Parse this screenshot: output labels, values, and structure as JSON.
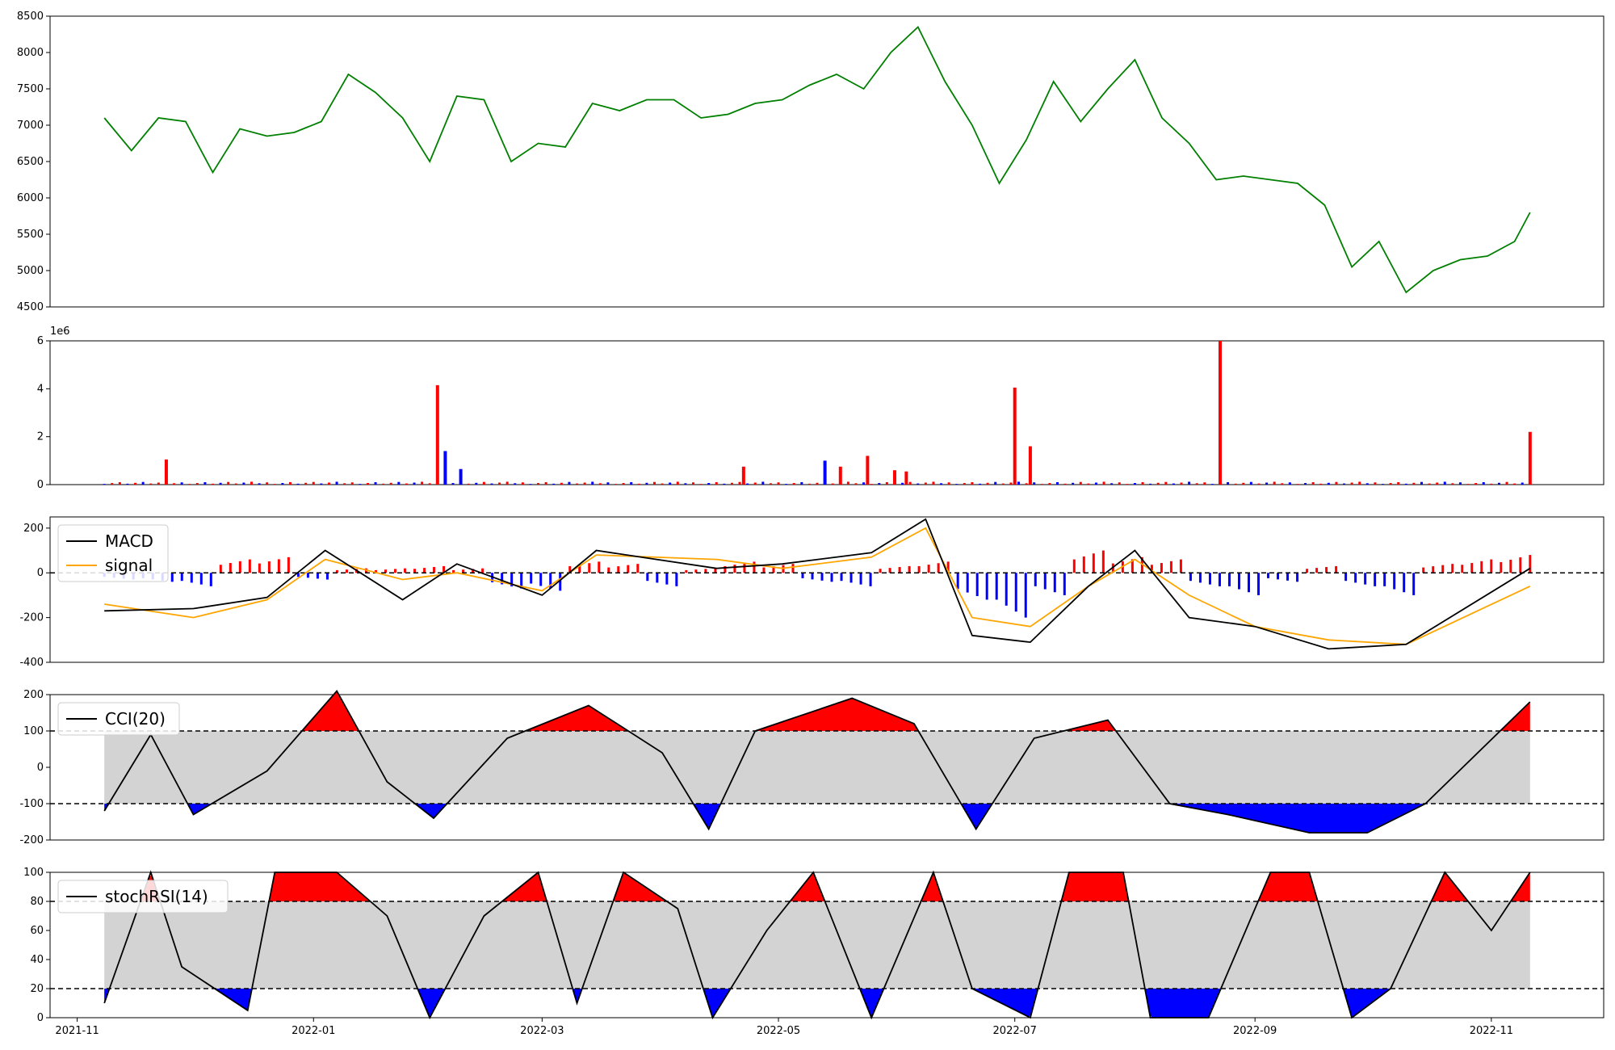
{
  "figure": {
    "background": "#ffffff"
  },
  "colors": {
    "price": "#008000",
    "up": "#ff0000",
    "down": "#0000ff",
    "macd": "#000000",
    "signal": "#ffa500",
    "band": "#d3d3d3",
    "line": "#000000"
  },
  "x_axis": {
    "ticks": [
      "2021-11",
      "2022-01",
      "2022-03",
      "2022-05",
      "2022-07",
      "2022-09",
      "2022-11"
    ]
  },
  "chart_data": [
    {
      "id": "price",
      "type": "line",
      "title": "",
      "xlabel": "",
      "ylabel": "",
      "ylim": [
        4500,
        8500
      ],
      "yticks": [
        "8500",
        "8000",
        "7500",
        "7000",
        "6500",
        "6000",
        "5500",
        "5000",
        "4500"
      ],
      "x": [
        "2021-11-08",
        "2021-11-15",
        "2021-11-22",
        "2021-11-29",
        "2021-12-06",
        "2021-12-13",
        "2021-12-20",
        "2021-12-27",
        "2022-01-03",
        "2022-01-10",
        "2022-01-17",
        "2022-01-24",
        "2022-01-31",
        "2022-02-07",
        "2022-02-14",
        "2022-02-21",
        "2022-02-28",
        "2022-03-07",
        "2022-03-14",
        "2022-03-21",
        "2022-03-28",
        "2022-04-04",
        "2022-04-11",
        "2022-04-18",
        "2022-04-25",
        "2022-05-02",
        "2022-05-09",
        "2022-05-16",
        "2022-05-23",
        "2022-05-30",
        "2022-06-06",
        "2022-06-13",
        "2022-06-20",
        "2022-06-27",
        "2022-07-04",
        "2022-07-11",
        "2022-07-18",
        "2022-07-25",
        "2022-08-01",
        "2022-08-08",
        "2022-08-15",
        "2022-08-22",
        "2022-08-29",
        "2022-09-05",
        "2022-09-12",
        "2022-09-19",
        "2022-09-26",
        "2022-10-03",
        "2022-10-10",
        "2022-10-17",
        "2022-10-24",
        "2022-10-31",
        "2022-11-07",
        "2022-11-11"
      ],
      "series": [
        {
          "values": [
            7100,
            6650,
            7100,
            7050,
            6350,
            6950,
            6850,
            6900,
            7050,
            7700,
            7450,
            7100,
            6500,
            7400,
            7350,
            6500,
            6750,
            6700,
            7300,
            7200,
            7350,
            7350,
            7100,
            7150,
            7300,
            7350,
            7550,
            7700,
            7500,
            8000,
            8350,
            7600,
            7000,
            6200,
            6800,
            7600,
            7050,
            7500,
            7900,
            7100,
            6750,
            6250,
            6300,
            6250,
            6200,
            5900,
            5050,
            5400,
            4700,
            5000,
            5150,
            5200,
            5400,
            5800
          ]
        }
      ]
    },
    {
      "id": "volume",
      "type": "bar",
      "title": "",
      "xlabel": "",
      "ylabel": "",
      "ylim": [
        0,
        6000000
      ],
      "scale_label": "1e6",
      "yticks": [
        "6",
        "4",
        "2",
        "0"
      ],
      "x": [
        "2021-11-24",
        "2022-02-02",
        "2022-02-04",
        "2022-02-08",
        "2022-04-22",
        "2022-05-13",
        "2022-05-17",
        "2022-05-24",
        "2022-05-31",
        "2022-06-03",
        "2022-07-01",
        "2022-07-05",
        "2022-08-23",
        "2022-11-11"
      ],
      "series": [
        {
          "values": [
            1050000,
            4150000,
            1400000,
            650000,
            750000,
            1000000,
            750000,
            1200000,
            600000,
            550000,
            4050000,
            1600000,
            6000000,
            2200000
          ]
        }
      ]
    },
    {
      "id": "macd",
      "type": "line",
      "title": "",
      "xlabel": "",
      "ylabel": "",
      "ylim": [
        -400,
        250
      ],
      "yticks": [
        "200",
        "0",
        "-200",
        "-400"
      ],
      "x": [
        "2021-11-08",
        "2021-12-01",
        "2021-12-20",
        "2022-01-04",
        "2022-01-24",
        "2022-02-07",
        "2022-03-01",
        "2022-03-15",
        "2022-04-15",
        "2022-05-02",
        "2022-05-25",
        "2022-06-08",
        "2022-06-20",
        "2022-07-05",
        "2022-07-20",
        "2022-08-01",
        "2022-08-15",
        "2022-09-01",
        "2022-09-20",
        "2022-10-10",
        "2022-11-11"
      ],
      "series": [
        {
          "name": "MACD",
          "values": [
            -170,
            -160,
            -110,
            100,
            -120,
            40,
            -100,
            100,
            20,
            40,
            90,
            240,
            -280,
            -310,
            -60,
            100,
            -200,
            -240,
            -340,
            -320,
            20
          ]
        },
        {
          "name": "signal",
          "values": [
            -140,
            -200,
            -120,
            60,
            -30,
            0,
            -80,
            80,
            60,
            20,
            70,
            200,
            -200,
            -240,
            -60,
            60,
            -100,
            -240,
            -300,
            -320,
            -60
          ]
        }
      ],
      "hist_values": [
        -30,
        -40,
        -60,
        60,
        70,
        -30,
        20,
        20,
        30,
        20,
        -70,
        -80,
        50,
        40,
        -60,
        20,
        50,
        40,
        -40,
        -60,
        30,
        50,
        -120,
        -200,
        -100,
        100,
        70,
        60,
        -60,
        -100,
        -40,
        30,
        -60,
        -100,
        40,
        60,
        80
      ]
    },
    {
      "id": "cci",
      "type": "line",
      "title": "",
      "xlabel": "",
      "ylabel": "",
      "ylim": [
        -200,
        200
      ],
      "thresholds": [
        100,
        -100
      ],
      "yticks": [
        "200",
        "100",
        "0",
        "-100",
        "-200"
      ],
      "x": [
        "2021-11-08",
        "2021-11-20",
        "2021-12-01",
        "2021-12-20",
        "2022-01-07",
        "2022-01-20",
        "2022-02-01",
        "2022-02-20",
        "2022-03-13",
        "2022-04-01",
        "2022-04-13",
        "2022-04-25",
        "2022-05-20",
        "2022-06-05",
        "2022-06-21",
        "2022-07-06",
        "2022-07-25",
        "2022-08-10",
        "2022-08-25",
        "2022-09-15",
        "2022-09-30",
        "2022-10-15",
        "2022-11-11"
      ],
      "series": [
        {
          "name": "CCI(20)",
          "values": [
            -120,
            90,
            -130,
            -10,
            210,
            -40,
            -140,
            80,
            170,
            40,
            -170,
            100,
            190,
            120,
            -170,
            80,
            130,
            -100,
            -130,
            -180,
            -180,
            -100,
            180
          ]
        }
      ]
    },
    {
      "id": "stochrsi",
      "type": "line",
      "title": "",
      "xlabel": "",
      "ylabel": "",
      "ylim": [
        0,
        100
      ],
      "thresholds": [
        80,
        20
      ],
      "yticks": [
        "100",
        "80",
        "60",
        "40",
        "20",
        "0"
      ],
      "x": [
        "2021-11-08",
        "2021-11-20",
        "2021-11-28",
        "2021-12-15",
        "2021-12-22",
        "2022-01-07",
        "2022-01-20",
        "2022-01-31",
        "2022-02-14",
        "2022-02-28",
        "2022-03-10",
        "2022-03-22",
        "2022-04-05",
        "2022-04-14",
        "2022-04-28",
        "2022-05-10",
        "2022-05-25",
        "2022-06-10",
        "2022-06-20",
        "2022-07-05",
        "2022-07-15",
        "2022-07-29",
        "2022-08-05",
        "2022-08-20",
        "2022-09-05",
        "2022-09-15",
        "2022-09-26",
        "2022-10-06",
        "2022-10-20",
        "2022-11-01",
        "2022-11-11"
      ],
      "series": [
        {
          "name": "stochRSI(14)",
          "values": [
            10,
            100,
            35,
            5,
            100,
            100,
            70,
            0,
            70,
            100,
            10,
            100,
            75,
            0,
            60,
            100,
            0,
            100,
            20,
            0,
            100,
            100,
            0,
            0,
            100,
            100,
            0,
            20,
            100,
            60,
            100
          ]
        }
      ]
    }
  ]
}
